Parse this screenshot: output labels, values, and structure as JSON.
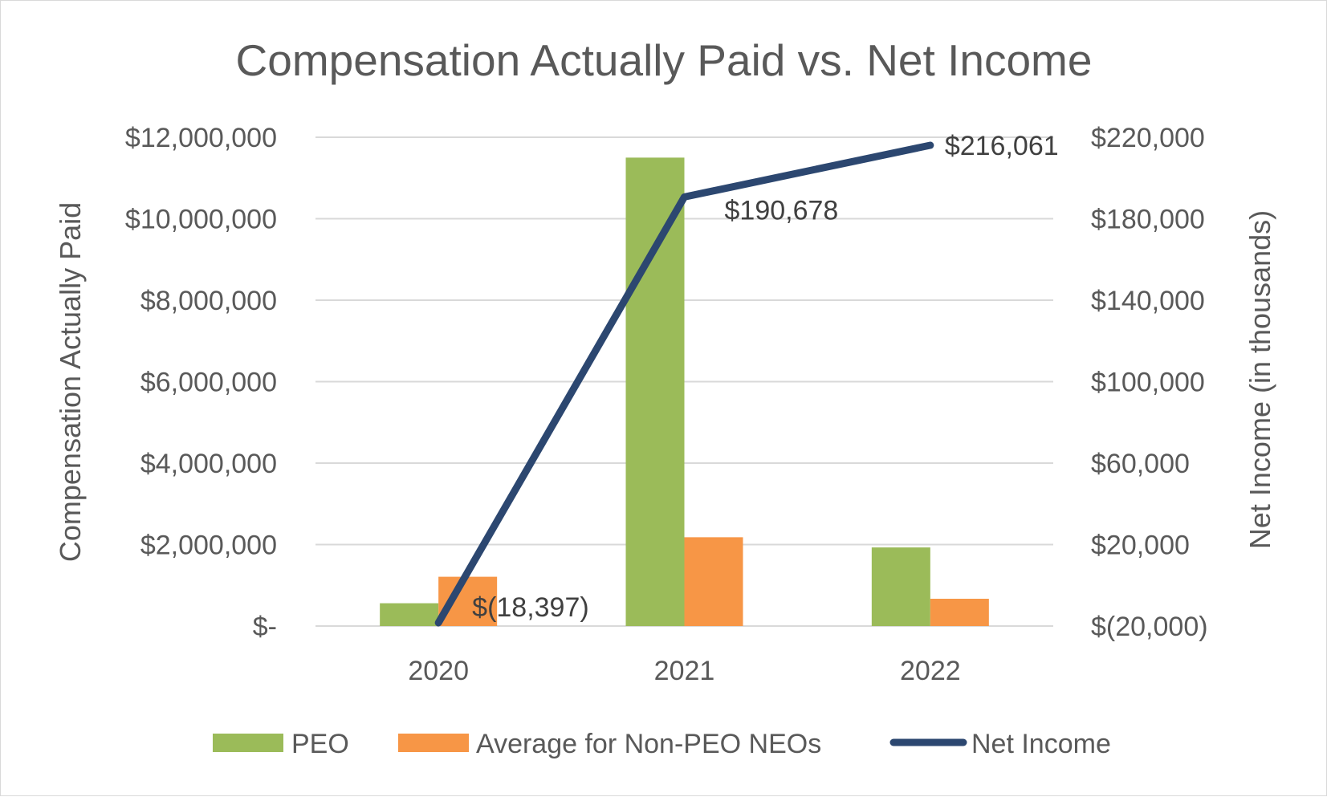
{
  "chart_data": {
    "type": "bar",
    "title": "Compensation Actually Paid vs. Net Income",
    "categories": [
      "2020",
      "2021",
      "2022"
    ],
    "y_left": {
      "label": "Compensation Actually Paid",
      "ylim": [
        0,
        12000000
      ],
      "ticks": [
        0,
        2000000,
        4000000,
        6000000,
        8000000,
        10000000,
        12000000
      ],
      "tick_labels": [
        "$-",
        "$2,000,000",
        "$4,000,000",
        "$6,000,000",
        "$8,000,000",
        "$10,000,000",
        "$12,000,000"
      ]
    },
    "y_right": {
      "label": "Net Income (in thousands)",
      "ylim": [
        -20000,
        220000
      ],
      "ticks": [
        -20000,
        20000,
        60000,
        100000,
        140000,
        180000,
        220000
      ],
      "tick_labels": [
        "$(20,000)",
        "$20,000",
        "$60,000",
        "$100,000",
        "$140,000",
        "$180,000",
        "$220,000"
      ]
    },
    "series": [
      {
        "name": "PEO",
        "type": "bar",
        "axis": "left",
        "color": "#9bbb59",
        "values": [
          560000,
          11500000,
          1930000
        ]
      },
      {
        "name": "Average for Non-PEO NEOs",
        "type": "bar",
        "axis": "left",
        "color": "#f79646",
        "values": [
          1210000,
          2180000,
          670000
        ]
      },
      {
        "name": "Net Income",
        "type": "line",
        "axis": "right",
        "color": "#2c4770",
        "values": [
          -18397,
          190678,
          216061
        ],
        "data_labels": [
          "$(18,397)",
          "$190,678",
          "$216,061"
        ]
      }
    ],
    "grid": true,
    "legend": "bottom"
  }
}
